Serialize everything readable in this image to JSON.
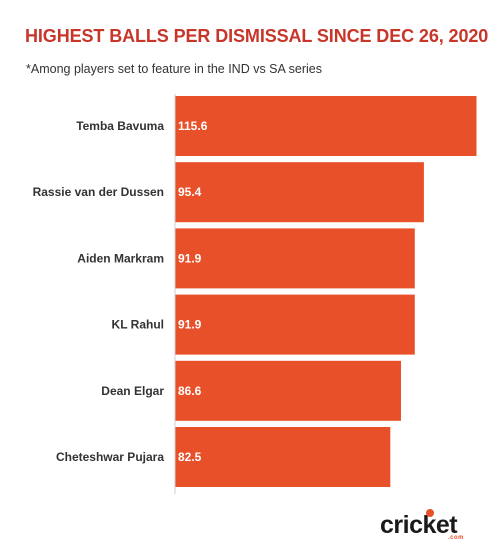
{
  "title": "HIGHEST BALLS PER DISMISSAL SINCE DEC 26, 2020",
  "subtitle": "*Among players set to feature in the IND vs SA series",
  "logo": {
    "text": "cricket",
    "sub": ".com"
  },
  "colors": {
    "bar": "#e8502a",
    "title": "#c8362a",
    "axis": "#cccccc"
  },
  "chart_data": {
    "type": "bar",
    "orientation": "horizontal",
    "categories": [
      "Temba Bavuma",
      "Rassie van der Dussen",
      "Aiden Markram",
      "KL Rahul",
      "Dean Elgar",
      "Cheteshwar Pujara"
    ],
    "values": [
      115.6,
      95.4,
      91.9,
      91.9,
      86.6,
      82.5
    ],
    "value_labels": [
      "115.6",
      "95.4",
      "91.9",
      "91.9",
      "86.6",
      "82.5"
    ],
    "title": "HIGHEST BALLS PER DISMISSAL SINCE DEC 26, 2020",
    "xlabel": "",
    "ylabel": "",
    "xlim": [
      0,
      115.6
    ],
    "grid": false,
    "legend": "none"
  }
}
